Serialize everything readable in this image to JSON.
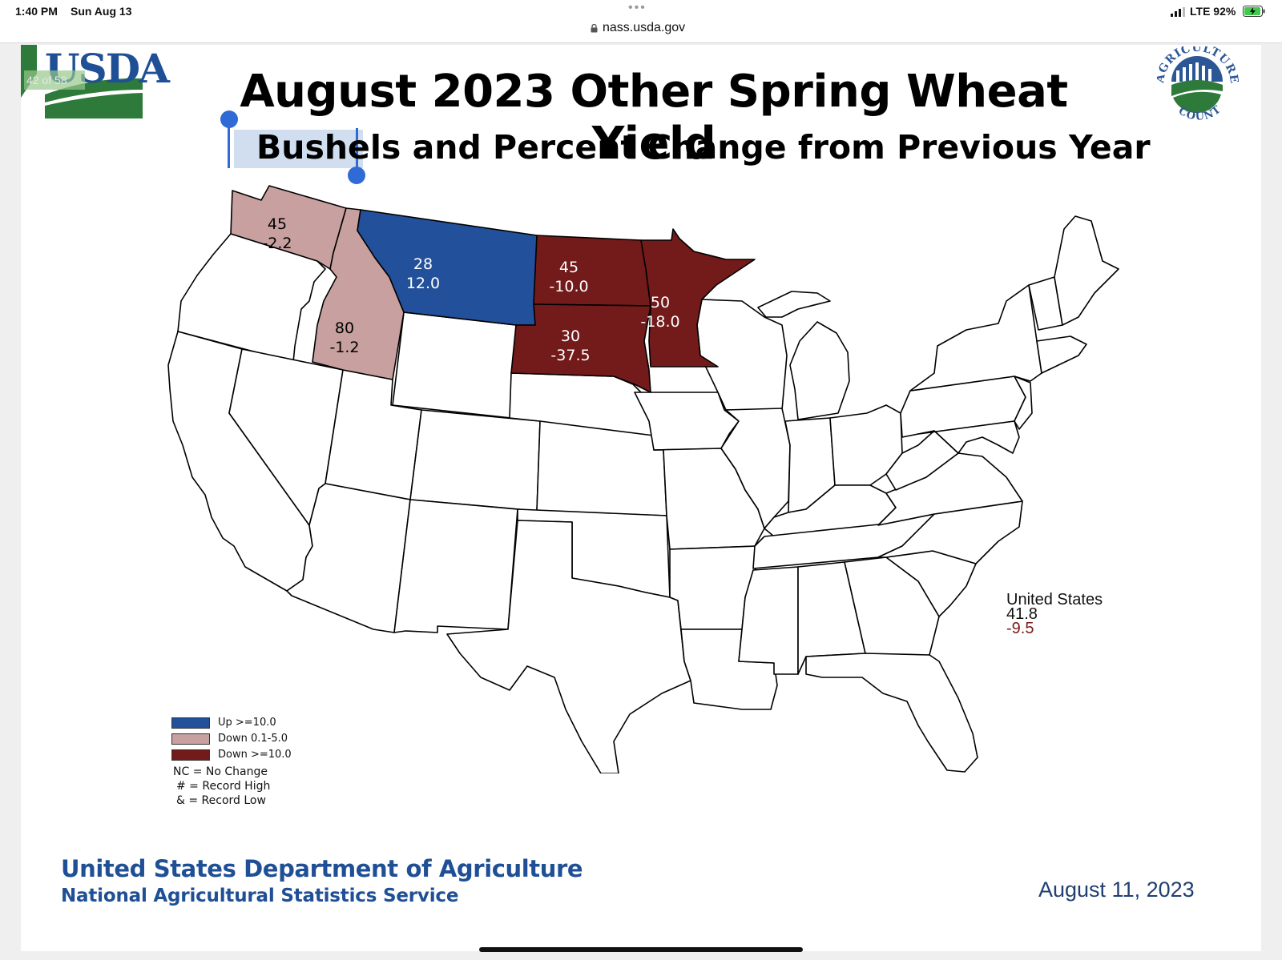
{
  "status_bar": {
    "time": "1:40 PM",
    "date": "Sun Aug 13",
    "url": "nass.usda.gov",
    "network": "LTE 92%",
    "menu_dots": "•••"
  },
  "slide": {
    "page_indicator": "42 of 58",
    "logo_text": "USDA",
    "ag_logo_text": "AGRICULTURE COUNTS",
    "title": "August 2023 Other Spring Wheat Yield",
    "subtitle_selected": "Bushels",
    "subtitle_rest": " and Percent Change from Previous Year",
    "states": [
      {
        "name": "Washington",
        "yield": "45",
        "change": "-2.2",
        "category": "down_small"
      },
      {
        "name": "Idaho",
        "yield": "80",
        "change": "-1.2",
        "category": "down_small"
      },
      {
        "name": "Montana",
        "yield": "28",
        "change": "12.0",
        "category": "up"
      },
      {
        "name": "North Dakota",
        "yield": "45",
        "change": "-10.0",
        "category": "down_large"
      },
      {
        "name": "South Dakota",
        "yield": "30",
        "change": "-37.5",
        "category": "down_large"
      },
      {
        "name": "Minnesota",
        "yield": "50",
        "change": "-18.0",
        "category": "down_large"
      }
    ],
    "legend": {
      "items": [
        {
          "label": "Up >=10.0",
          "color": "#23509a"
        },
        {
          "label": "Down 0.1-5.0",
          "color": "#c9a0a0"
        },
        {
          "label": "Down >=10.0",
          "color": "#731a1a"
        }
      ],
      "notes": [
        "NC = No Change",
        "# = Record High",
        "& = Record Low"
      ]
    },
    "us_total": {
      "label": "United States",
      "yield": "41.8",
      "change": "-9.5"
    },
    "footer": {
      "org_line1": "United States Department of Agriculture",
      "org_line2": "National Agricultural Statistics Service",
      "date": "August 11, 2023"
    }
  }
}
